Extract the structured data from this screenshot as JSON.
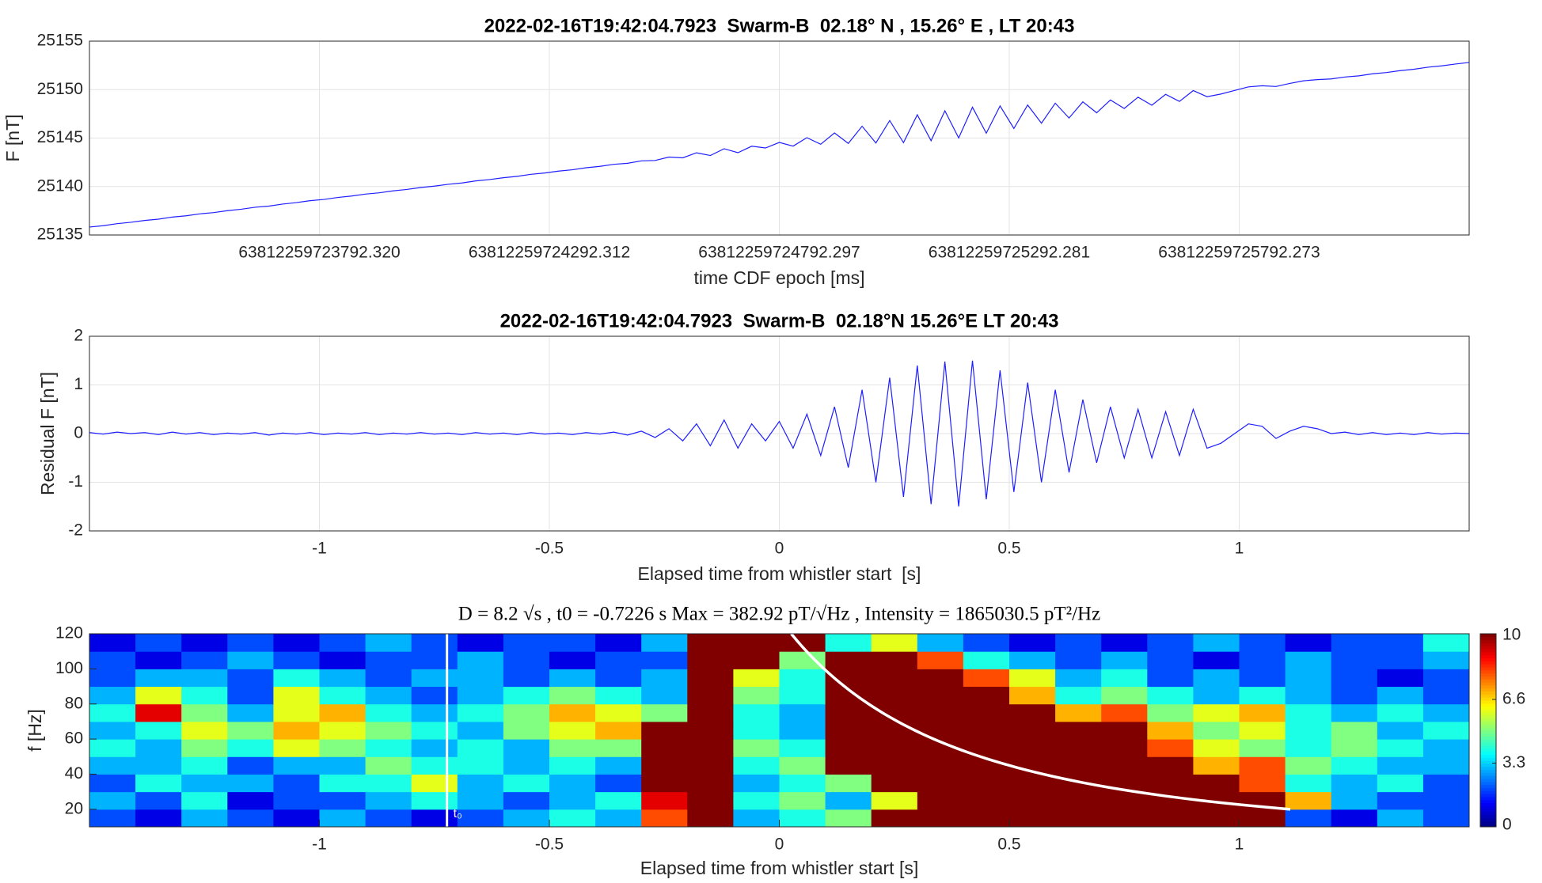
{
  "chart_data": [
    {
      "type": "line",
      "title": "2022-02-16T19:42:04.7923  Swarm-B  02.18° N , 15.26° E , LT 20:43",
      "xlabel": "time CDF epoch [ms]",
      "ylabel": "F [nT]",
      "grid": true,
      "xlim": [
        63812259723292.3,
        63812259726292.3
      ],
      "xticks": [
        {
          "value": 63812259723792.32,
          "label": "63812259723792.320"
        },
        {
          "value": 63812259724292.31,
          "label": "63812259724292.312"
        },
        {
          "value": 63812259724792.3,
          "label": "63812259724792.297"
        },
        {
          "value": 63812259725292.28,
          "label": "63812259725292.281"
        },
        {
          "value": 63812259725792.27,
          "label": "63812259725792.273"
        }
      ],
      "ylim": [
        25135,
        25155
      ],
      "yticks": [
        25135,
        25140,
        25145,
        25150,
        25155
      ],
      "x": [
        63812259723292.3,
        63812259723322.3,
        63812259723352.3,
        63812259723382.3,
        63812259723412.3,
        63812259723442.3,
        63812259723472.3,
        63812259723502.3,
        63812259723532.3,
        63812259723562.3,
        63812259723592.3,
        63812259723622.3,
        63812259723652.3,
        63812259723682.3,
        63812259723712.3,
        63812259723742.3,
        63812259723772.3,
        63812259723802.3,
        63812259723832.3,
        63812259723862.3,
        63812259723892.3,
        63812259723922.3,
        63812259723952.3,
        63812259723982.3,
        63812259724012.3,
        63812259724042.3,
        63812259724072.3,
        63812259724102.3,
        63812259724132.3,
        63812259724162.3,
        63812259724192.3,
        63812259724222.3,
        63812259724252.3,
        63812259724282.3,
        63812259724312.3,
        63812259724342.3,
        63812259724372.3,
        63812259724402.3,
        63812259724432.3,
        63812259724462.3,
        63812259724492.3,
        63812259724522.3,
        63812259724552.3,
        63812259724582.3,
        63812259724612.3,
        63812259724642.3,
        63812259724672.3,
        63812259724702.3,
        63812259724732.3,
        63812259724762.3,
        63812259724792.3,
        63812259724822.3,
        63812259724852.3,
        63812259724882.3,
        63812259724912.3,
        63812259724942.3,
        63812259724972.3,
        63812259725002.3,
        63812259725032.3,
        63812259725062.3,
        63812259725092.3,
        63812259725122.3,
        63812259725152.3,
        63812259725182.3,
        63812259725212.3,
        63812259725242.3,
        63812259725272.3,
        63812259725302.3,
        63812259725332.3,
        63812259725362.3,
        63812259725392.3,
        63812259725422.3,
        63812259725452.3,
        63812259725482.3,
        63812259725512.3,
        63812259725542.3,
        63812259725572.3,
        63812259725602.3,
        63812259725632.3,
        63812259725662.3,
        63812259725692.3,
        63812259725722.3,
        63812259725752.3,
        63812259725782.3,
        63812259725812.3,
        63812259725842.3,
        63812259725872.3,
        63812259725902.3,
        63812259725932.3,
        63812259725962.3,
        63812259725992.3,
        63812259726022.3,
        63812259726052.3,
        63812259726082.3,
        63812259726112.3,
        63812259726142.3,
        63812259726172.3,
        63812259726202.3,
        63812259726232.3,
        63812259726262.3,
        63812259726292.3
      ],
      "series": [
        {
          "color": "#1f1fff",
          "values": [
            25135.82,
            25135.96,
            25136.17,
            25136.31,
            25136.5,
            25136.63,
            25136.85,
            25136.98,
            25137.18,
            25137.31,
            25137.51,
            25137.66,
            25137.86,
            25137.98,
            25138.19,
            25138.34,
            25138.54,
            25138.67,
            25138.87,
            25139.02,
            25139.22,
            25139.35,
            25139.55,
            25139.7,
            25139.9,
            25140.04,
            25140.23,
            25140.37,
            25140.58,
            25140.72,
            25140.91,
            25141.05,
            25141.26,
            25141.4,
            25141.59,
            25141.73,
            25141.94,
            25142.08,
            25142.29,
            25142.4,
            25142.65,
            25142.69,
            25143.04,
            25142.96,
            25143.48,
            25143.2,
            25143.9,
            25143.49,
            25144.16,
            25143.98,
            25144.55,
            25144.17,
            25145.04,
            25144.36,
            25145.53,
            25144.45,
            25146.22,
            25144.49,
            25146.81,
            25144.53,
            25147.4,
            25144.72,
            25147.82,
            25145.01,
            25148.18,
            25145.5,
            25148.32,
            25145.99,
            25148.41,
            25146.53,
            25148.6,
            25147.07,
            25148.74,
            25147.61,
            25148.93,
            25148.05,
            25149.22,
            25148.39,
            25149.51,
            25148.78,
            25149.9,
            25149.27,
            25149.54,
            25149.91,
            25150.28,
            25150.4,
            25150.32,
            25150.64,
            25150.91,
            25151.03,
            25151.1,
            25151.3,
            25151.42,
            25151.63,
            25151.76,
            25151.96,
            25152.1,
            25152.31,
            25152.45,
            25152.64,
            25152.8
          ]
        }
      ]
    },
    {
      "type": "line",
      "title": "2022-02-16T19:42:04.7923  Swarm-B  02.18°N 15.26°E LT 20:43",
      "xlabel": "Elapsed time from whistler start  [s]",
      "ylabel": "Residual F [nT]",
      "grid": true,
      "xlim": [
        -1.5,
        1.5
      ],
      "xticks": [
        -1,
        -0.5,
        0,
        0.5,
        1
      ],
      "ylim": [
        -2,
        2
      ],
      "yticks": [
        -2,
        -1,
        0,
        1,
        2
      ],
      "x": [
        -1.5,
        -1.47,
        -1.44,
        -1.41,
        -1.38,
        -1.35,
        -1.32,
        -1.29,
        -1.26,
        -1.23,
        -1.2,
        -1.17,
        -1.14,
        -1.11,
        -1.08,
        -1.05,
        -1.02,
        -0.99,
        -0.96,
        -0.93,
        -0.9,
        -0.87,
        -0.84,
        -0.81,
        -0.78,
        -0.75,
        -0.72,
        -0.69,
        -0.66,
        -0.63,
        -0.6,
        -0.57,
        -0.54,
        -0.51,
        -0.48,
        -0.45,
        -0.42,
        -0.39,
        -0.36,
        -0.33,
        -0.3,
        -0.27,
        -0.24,
        -0.21,
        -0.18,
        -0.15,
        -0.12,
        -0.09,
        -0.06,
        -0.03,
        0,
        0.03,
        0.06,
        0.09,
        0.12,
        0.15,
        0.18,
        0.21,
        0.24,
        0.27,
        0.3,
        0.33,
        0.36,
        0.39,
        0.42,
        0.45,
        0.48,
        0.51,
        0.54,
        0.57,
        0.6,
        0.63,
        0.66,
        0.69,
        0.72,
        0.75,
        0.78,
        0.81,
        0.84,
        0.87,
        0.9,
        0.93,
        0.96,
        0.99,
        1.02,
        1.05,
        1.08,
        1.11,
        1.14,
        1.17,
        1.2,
        1.23,
        1.26,
        1.29,
        1.32,
        1.35,
        1.38,
        1.41,
        1.44,
        1.47,
        1.5
      ],
      "series": [
        {
          "color": "#1f1fff",
          "values": [
            0.02,
            -0.01,
            0.03,
            0,
            0.02,
            -0.02,
            0.03,
            -0.01,
            0.02,
            -0.02,
            0.01,
            -0.01,
            0.02,
            -0.03,
            0.01,
            -0.01,
            0.02,
            -0.02,
            0.01,
            -0.01,
            0.02,
            -0.02,
            0.01,
            -0.01,
            0.02,
            -0.01,
            0.01,
            -0.02,
            0.02,
            -0.01,
            0.01,
            -0.02,
            0.02,
            -0.01,
            0.01,
            -0.02,
            0.02,
            -0.01,
            0.03,
            -0.03,
            0.05,
            -0.08,
            0.1,
            -0.15,
            0.2,
            -0.25,
            0.28,
            -0.3,
            0.2,
            -0.15,
            0.25,
            -0.3,
            0.4,
            -0.45,
            0.55,
            -0.7,
            0.9,
            -1,
            1.15,
            -1.3,
            1.4,
            -1.45,
            1.48,
            -1.5,
            1.5,
            -1.35,
            1.3,
            -1.2,
            1.05,
            -1,
            0.9,
            -0.8,
            0.7,
            -0.6,
            0.55,
            -0.5,
            0.5,
            -0.5,
            0.45,
            -0.45,
            0.5,
            -0.3,
            -0.2,
            0,
            0.2,
            0.15,
            -0.1,
            0.05,
            0.15,
            0.1,
            0,
            0.03,
            -0.02,
            0.02,
            -0.02,
            0.01,
            -0.02,
            0.02,
            -0.01,
            0.01,
            0
          ]
        }
      ]
    },
    {
      "type": "heatmap",
      "title": "D = 8.2 √s , t0 = -0.7226 s Max = 382.92 pT/√Hz , Intensity = 1865030.5 pT²/Hz",
      "xlabel": "Elapsed time from whistler start [s]",
      "ylabel": "f [Hz]",
      "grid": false,
      "xlim": [
        -1.5,
        1.5
      ],
      "xticks": [
        -1,
        -0.5,
        0,
        0.5,
        1
      ],
      "ylim": [
        10,
        120
      ],
      "yticks": [
        20,
        40,
        60,
        80,
        100,
        120
      ],
      "colormap": "jet",
      "clim": [
        0,
        10
      ],
      "cticks": [
        0,
        3.3,
        6.6,
        10
      ],
      "x": [
        -1.45,
        -1.35,
        -1.25,
        -1.15,
        -1.05,
        -0.95,
        -0.85,
        -0.75,
        -0.65,
        -0.55,
        -0.45,
        -0.35,
        -0.25,
        -0.15,
        -0.05,
        0.05,
        0.15,
        0.25,
        0.35,
        0.45,
        0.55,
        0.65,
        0.75,
        0.85,
        0.95,
        1.05,
        1.15,
        1.25,
        1.35,
        1.45
      ],
      "y": [
        15,
        25,
        35,
        45,
        55,
        65,
        75,
        85,
        95,
        105,
        115
      ],
      "values": [
        [
          2,
          1,
          3,
          2,
          1,
          3,
          2,
          1,
          2,
          3,
          4,
          3,
          8,
          10,
          3,
          4,
          5,
          10,
          10,
          10,
          10,
          10,
          10,
          10,
          10,
          10,
          2,
          1,
          3,
          2
        ],
        [
          3,
          2,
          4,
          1,
          2,
          2,
          3,
          4,
          3,
          2,
          3,
          4,
          9,
          10,
          4,
          5,
          3,
          6,
          10,
          10,
          10,
          10,
          10,
          10,
          10,
          10,
          7,
          3,
          2,
          2
        ],
        [
          2,
          4,
          3,
          3,
          2,
          4,
          4,
          6,
          3,
          4,
          3,
          2,
          10,
          10,
          3,
          4,
          5,
          10,
          10,
          10,
          10,
          10,
          10,
          10,
          10,
          8,
          4,
          3,
          4,
          2
        ],
        [
          3,
          3,
          4,
          2,
          3,
          3,
          5,
          4,
          4,
          3,
          4,
          3,
          10,
          10,
          4,
          5,
          10,
          10,
          10,
          10,
          10,
          10,
          10,
          10,
          7,
          8,
          5,
          4,
          3,
          3
        ],
        [
          4,
          3,
          5,
          4,
          6,
          5,
          4,
          3,
          4,
          3,
          5,
          5,
          10,
          10,
          5,
          4,
          10,
          10,
          10,
          10,
          10,
          10,
          10,
          8,
          6,
          5,
          4,
          5,
          4,
          3
        ],
        [
          3,
          4,
          6,
          5,
          7,
          6,
          5,
          4,
          3,
          5,
          6,
          7,
          10,
          10,
          4,
          3,
          10,
          10,
          10,
          10,
          10,
          10,
          10,
          7,
          5,
          6,
          4,
          5,
          3,
          4
        ],
        [
          4,
          9,
          5,
          3,
          6,
          7,
          4,
          3,
          4,
          5,
          7,
          6,
          5,
          10,
          4,
          3,
          10,
          10,
          10,
          10,
          10,
          7,
          8,
          5,
          6,
          7,
          4,
          3,
          4,
          3
        ],
        [
          3,
          6,
          4,
          2,
          6,
          4,
          3,
          2,
          3,
          4,
          5,
          4,
          3,
          10,
          5,
          4,
          10,
          10,
          10,
          10,
          7,
          4,
          5,
          4,
          3,
          4,
          3,
          2,
          3,
          2
        ],
        [
          2,
          3,
          3,
          2,
          4,
          3,
          2,
          3,
          3,
          2,
          3,
          2,
          3,
          10,
          6,
          4,
          10,
          10,
          10,
          8,
          6,
          3,
          4,
          2,
          3,
          2,
          3,
          2,
          1,
          2
        ],
        [
          2,
          1,
          2,
          3,
          2,
          1,
          2,
          2,
          3,
          2,
          1,
          2,
          2,
          10,
          10,
          5,
          10,
          10,
          8,
          4,
          3,
          2,
          3,
          2,
          1,
          2,
          3,
          2,
          2,
          3
        ],
        [
          1,
          2,
          1,
          2,
          1,
          2,
          3,
          2,
          1,
          2,
          2,
          1,
          3,
          10,
          10,
          10,
          4,
          6,
          3,
          2,
          1,
          2,
          1,
          2,
          3,
          2,
          1,
          2,
          2,
          4
        ]
      ],
      "whistler": {
        "D": 8.2,
        "t0": -0.7226,
        "f_range": [
          20,
          120
        ],
        "color": "#ffffff"
      },
      "t0_label": "t₀"
    }
  ]
}
